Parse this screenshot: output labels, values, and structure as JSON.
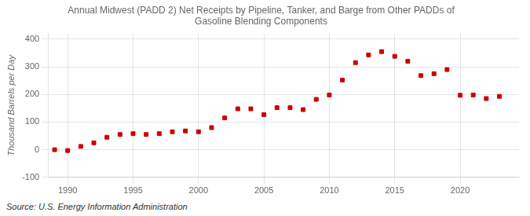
{
  "chart_data": {
    "type": "scatter",
    "title": "Annual Midwest (PADD 2) Net Receipts by Pipeline, Tanker, and Barge from Other PADDs of\nGasoline Blending Components",
    "ylabel": "Thousand Barrels per Day",
    "source": "Source: U.S. Energy Information Administration",
    "x": [
      1989,
      1990,
      1991,
      1992,
      1993,
      1994,
      1995,
      1996,
      1997,
      1998,
      1999,
      2000,
      2001,
      2002,
      2003,
      2004,
      2005,
      2006,
      2007,
      2008,
      2009,
      2010,
      2011,
      2012,
      2013,
      2014,
      2015,
      2016,
      2017,
      2018,
      2019,
      2020,
      2021,
      2022,
      2023
    ],
    "values": [
      0,
      -3,
      12,
      25,
      45,
      55,
      58,
      55,
      58,
      65,
      68,
      65,
      80,
      115,
      148,
      148,
      127,
      152,
      152,
      145,
      182,
      198,
      252,
      315,
      343,
      355,
      338,
      320,
      268,
      275,
      290,
      197,
      198,
      185,
      193
    ],
    "color": "#cc0000",
    "marker": "square",
    "xlim": [
      1988.5,
      2024.5
    ],
    "xticks": [
      1990,
      1995,
      2000,
      2005,
      2010,
      2015,
      2020
    ],
    "ylim": [
      -100,
      420
    ],
    "yticks": [
      -100,
      0,
      100,
      200,
      300,
      400
    ],
    "grid": true
  }
}
